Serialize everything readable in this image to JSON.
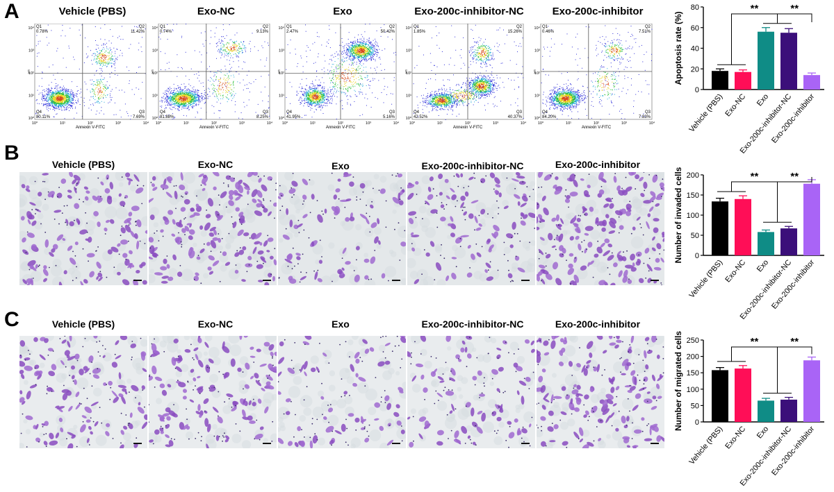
{
  "panels": {
    "A": {
      "letter": "A"
    },
    "B": {
      "letter": "B"
    },
    "C": {
      "letter": "C"
    }
  },
  "groups": [
    "Vehicle (PBS)",
    "Exo-NC",
    "Exo",
    "Exo-200c-inhibitor-NC",
    "Exo-200c-inhibitor"
  ],
  "flow": {
    "xlabel": "Annexin V-FITC",
    "ylabel": "PI",
    "xticks": [
      "10⁰",
      "10¹",
      "10²",
      "10³",
      "10⁴"
    ],
    "yticks": [
      "10⁴",
      "10³",
      "10²",
      "10¹",
      "10⁰"
    ],
    "plots": [
      {
        "q1": [
          "Q1",
          "0.78%"
        ],
        "q2": [
          "Q2",
          "11.42%"
        ],
        "q3": [
          "Q3",
          "7.69%"
        ],
        "q4": [
          "Q4",
          "80.11%"
        ]
      },
      {
        "q1": [
          "Q1",
          "0.74%"
        ],
        "q2": [
          "Q2",
          "9.13%"
        ],
        "q3": [
          "Q3",
          "8.25%"
        ],
        "q4": [
          "Q4",
          "81.88%"
        ]
      },
      {
        "q1": [
          "Q1",
          "2.47%"
        ],
        "q2": [
          "Q2",
          "50.42%"
        ],
        "q3": [
          "Q3",
          "5.16%"
        ],
        "q4": [
          "Q4",
          "41.95%"
        ]
      },
      {
        "q1": [
          "Q1",
          "1.85%"
        ],
        "q2": [
          "Q2",
          "15.26%"
        ],
        "q3": [
          "Q3",
          "40.37%"
        ],
        "q4": [
          "Q4",
          "42.52%"
        ]
      },
      {
        "q1": [
          "Q1",
          "0.46%"
        ],
        "q2": [
          "Q2",
          "7.51%"
        ],
        "q3": [
          "Q3",
          "7.83%"
        ],
        "q4": [
          "Q4",
          "84.20%"
        ]
      }
    ]
  },
  "colors": {
    "vehicle": "#000000",
    "exo_nc": "#ff0e57",
    "exo": "#0f8c86",
    "exo_inhib_nc": "#3b0f7a",
    "exo_inhib": "#a964f6",
    "stain": "#7a3fa8"
  },
  "chart_data": [
    {
      "type": "bar",
      "panel": "A",
      "categories": [
        "Vehicle (PBS)",
        "Exo-NC",
        "Exo",
        "Exo-200c-inhibitor-NC",
        "Exo-200c-inhibitor"
      ],
      "values": [
        18,
        17,
        56,
        55,
        14
      ],
      "errors": [
        2,
        2,
        4,
        4,
        2
      ],
      "ylabel": "Apoptosis rate (%)",
      "ylim": [
        0,
        80
      ],
      "yticks": [
        0,
        20,
        40,
        60,
        80
      ],
      "significance": [
        "**",
        "**"
      ]
    },
    {
      "type": "bar",
      "panel": "B",
      "categories": [
        "Vehicle (PBS)",
        "Exo-NC",
        "Exo",
        "Exo-200c-inhibitor-NC",
        "Exo-200c-inhibitor"
      ],
      "values": [
        134,
        140,
        58,
        67,
        178
      ],
      "errors": [
        8,
        8,
        5,
        5,
        10
      ],
      "ylabel": "Number of invaded cells",
      "ylim": [
        0,
        200
      ],
      "yticks": [
        0,
        50,
        100,
        150,
        200
      ],
      "significance": [
        "**",
        "**"
      ]
    },
    {
      "type": "bar",
      "panel": "C",
      "categories": [
        "Vehicle (PBS)",
        "Exo-NC",
        "Exo",
        "Exo-200c-inhibitor-NC",
        "Exo-200c-inhibitor"
      ],
      "values": [
        158,
        163,
        65,
        68,
        188
      ],
      "errors": [
        8,
        9,
        7,
        7,
        10
      ],
      "ylabel": "Number of migrated cells",
      "ylim": [
        0,
        250
      ],
      "yticks": [
        0,
        50,
        100,
        150,
        200,
        250
      ],
      "significance": [
        "**",
        "**"
      ]
    }
  ]
}
